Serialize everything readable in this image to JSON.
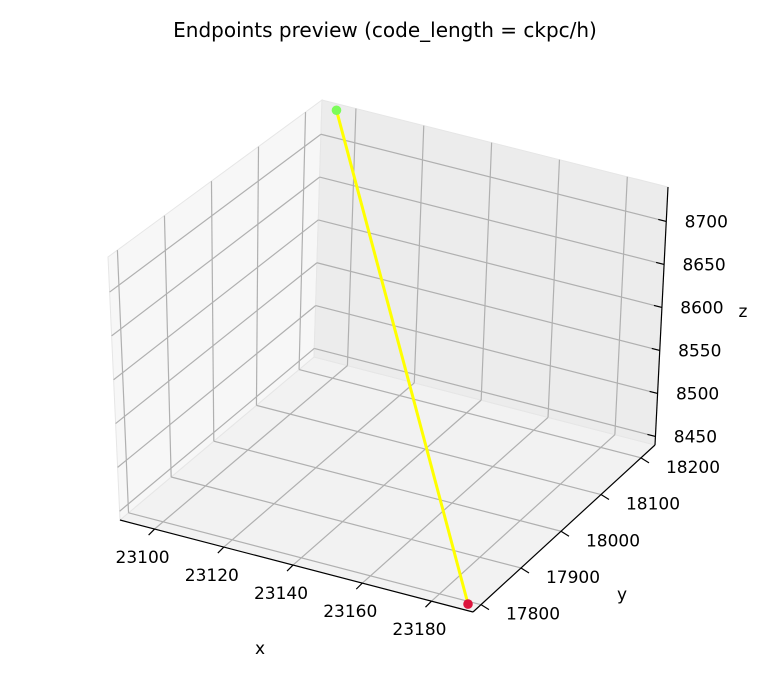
{
  "chart_data": {
    "type": "scatter",
    "title": "Endpoints preview (code_length = ckpc/h)",
    "xlabel": "x",
    "ylabel": "y",
    "zlabel": "z",
    "x_ticks": [
      23100,
      23120,
      23140,
      23160,
      23180
    ],
    "y_ticks": [
      17800,
      17900,
      18000,
      18100,
      18200
    ],
    "z_ticks": [
      8450,
      8500,
      8550,
      8600,
      8650,
      8700
    ],
    "xlim": [
      23090,
      23192
    ],
    "ylim": [
      17780,
      18235
    ],
    "zlim": [
      8440,
      8740
    ],
    "grid": true,
    "points": [
      {
        "x": 23095,
        "y": 18230,
        "z": 8735,
        "color": "#7cfc5a"
      },
      {
        "x": 23190,
        "y": 17785,
        "z": 8445,
        "color": "#dc143c"
      }
    ],
    "segment": {
      "color": "#ffff00"
    }
  }
}
